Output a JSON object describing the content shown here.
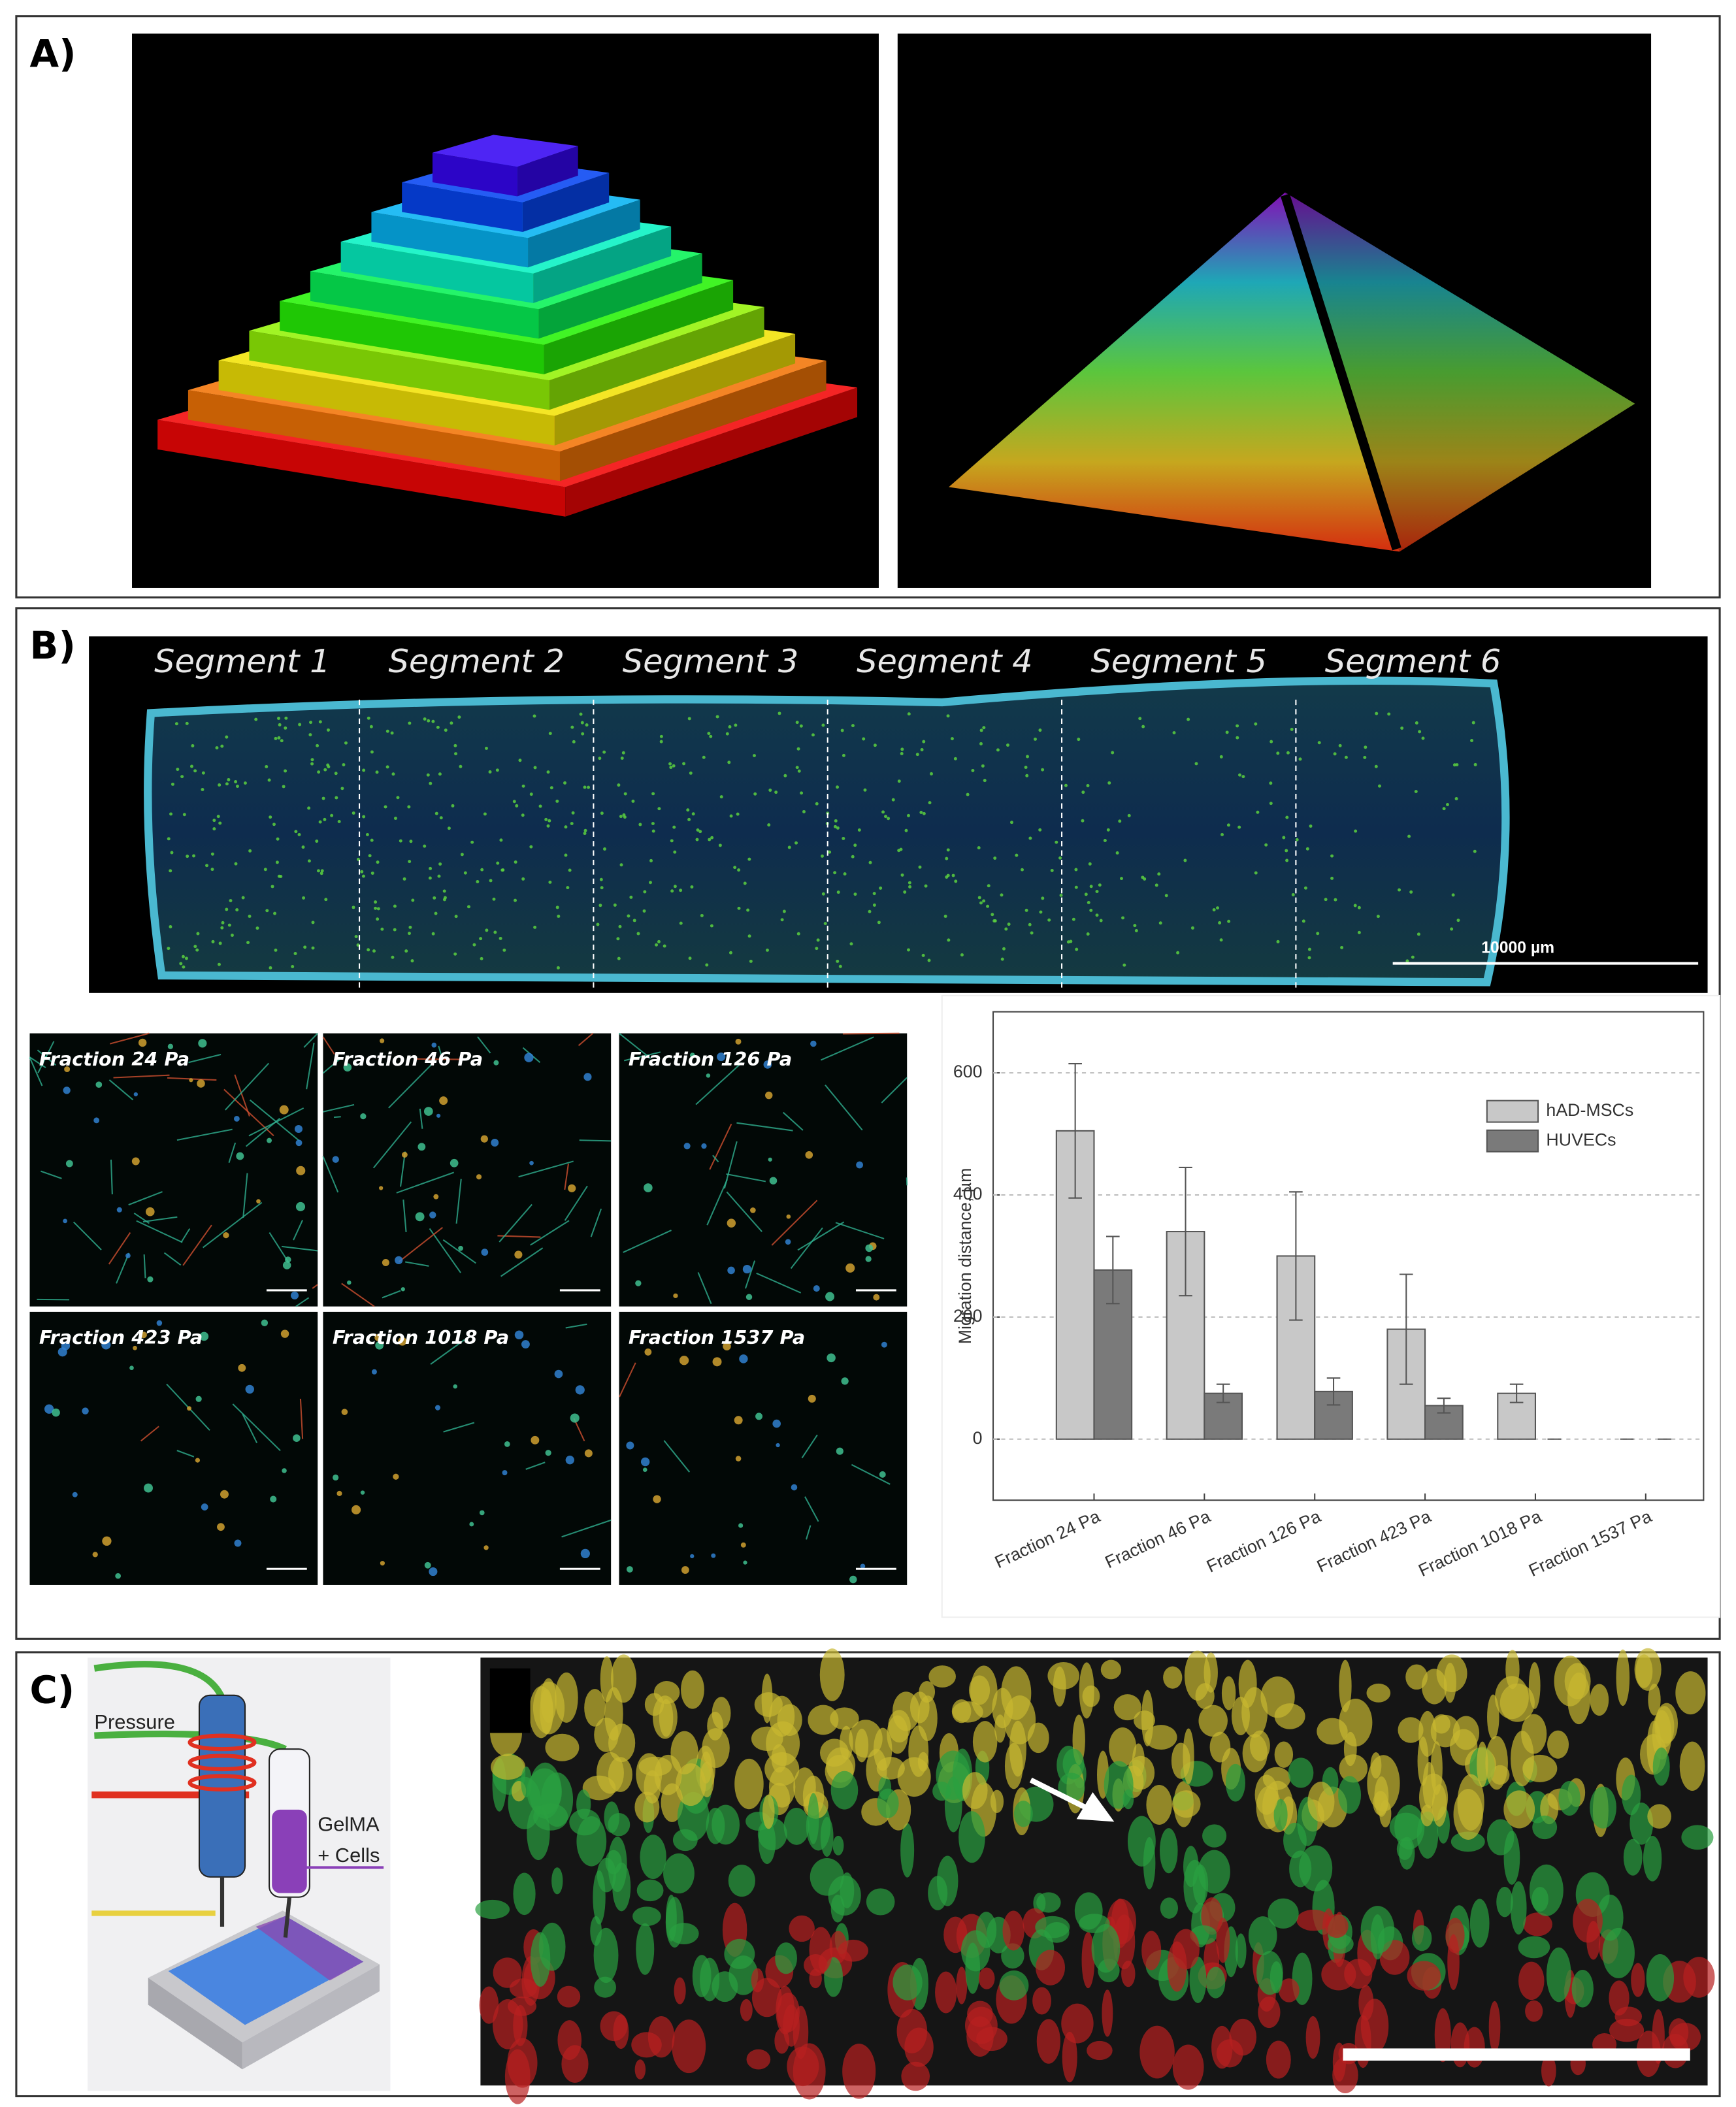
{
  "panels": {
    "a": {
      "label": "A)"
    },
    "b": {
      "label": "B)",
      "segments": [
        "Segment 1",
        "Segment 2",
        "Segment 3",
        "Segment 4",
        "Segment 5",
        "Segment 6"
      ],
      "scale_bar": "10000 µm",
      "fractions": [
        "Fraction 24 Pa",
        "Fraction 46 Pa",
        "Fraction 126 Pa",
        "Fraction 423 Pa",
        "Fraction 1018 Pa",
        "Fraction 1537 Pa"
      ]
    },
    "c": {
      "label": "C)",
      "labels": [
        "Pressure",
        "GelMA",
        "+ Cells"
      ]
    }
  },
  "chart_data": {
    "type": "bar",
    "y_label": "Migration distance, µm",
    "categories": [
      "Fraction 24 Pa",
      "Fraction 46 Pa",
      "Fraction 126 Pa",
      "Fraction 423 Pa",
      "Fraction 1018 Pa",
      "Fraction 1537 Pa"
    ],
    "series": [
      {
        "name": "hAD-MSCs",
        "color": "#c8c8c8",
        "values": [
          505,
          340,
          300,
          180,
          75,
          0
        ],
        "errors": [
          110,
          105,
          105,
          90,
          15,
          0
        ]
      },
      {
        "name": "HUVECs",
        "color": "#7a7a7a",
        "values": [
          277,
          75,
          78,
          55,
          0,
          0
        ],
        "errors": [
          55,
          15,
          22,
          12,
          0,
          0
        ]
      }
    ],
    "ylim": [
      -100,
      700
    ],
    "yticks": [
      0,
      200,
      400,
      600
    ],
    "grid": true,
    "legend": "upper right"
  }
}
